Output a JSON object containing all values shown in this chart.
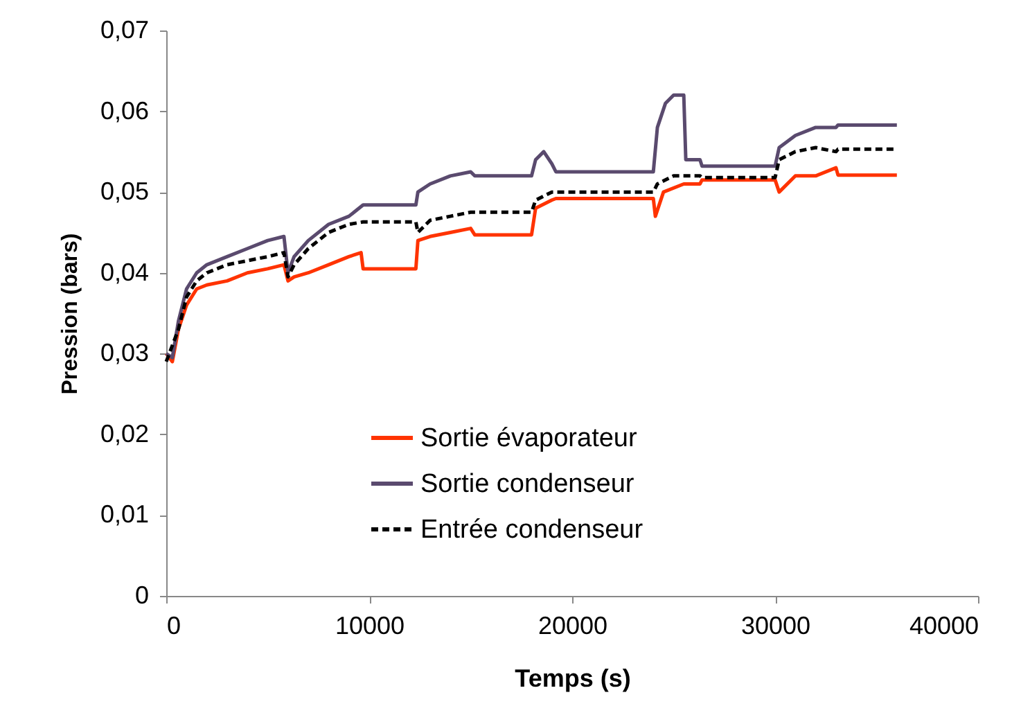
{
  "chart_data": {
    "type": "line",
    "xlabel": "Temps (s)",
    "ylabel": "Pression (bars)",
    "xlim": [
      0,
      40000
    ],
    "xticks": [
      0,
      10000,
      20000,
      30000,
      40000
    ],
    "ylim": [
      0,
      0.07
    ],
    "yticks": [
      0,
      {
        "value": 0.01,
        "label": "0,01"
      },
      {
        "value": 0.02,
        "label": "0,02"
      },
      {
        "value": 0.03,
        "label": "0,03"
      },
      {
        "value": 0.04,
        "label": "0,04"
      },
      {
        "value": 0.05,
        "label": "0,05"
      },
      {
        "value": 0.06,
        "label": "0,06"
      },
      {
        "value": 0.07,
        "label": "0,07"
      }
    ],
    "grid": false,
    "legend": "bottom",
    "marker": "none",
    "series": [
      {
        "name": "Sortie évaporateur",
        "color": "#ff3300",
        "line_style": "solid",
        "x": [
          0,
          300,
          600,
          1000,
          1500,
          2000,
          3000,
          4000,
          5000,
          5800,
          6000,
          6300,
          7000,
          8000,
          9000,
          9600,
          9700,
          12300,
          12400,
          13000,
          14000,
          15000,
          15200,
          18000,
          18200,
          19000,
          19200,
          24000,
          24100,
          24500,
          25500,
          26300,
          26400,
          30000,
          30200,
          31000,
          32000,
          33000,
          33100,
          36000
        ],
        "values": [
          0.03,
          0.029,
          0.033,
          0.036,
          0.038,
          0.0385,
          0.039,
          0.04,
          0.0405,
          0.041,
          0.039,
          0.0395,
          0.04,
          0.041,
          0.042,
          0.0425,
          0.0405,
          0.0405,
          0.044,
          0.0445,
          0.045,
          0.0455,
          0.0447,
          0.0447,
          0.048,
          0.049,
          0.0492,
          0.0492,
          0.047,
          0.05,
          0.051,
          0.051,
          0.0515,
          0.0515,
          0.05,
          0.052,
          0.052,
          0.053,
          0.0521,
          0.0521
        ]
      },
      {
        "name": "Sortie condenseur",
        "color": "#5a4a6e",
        "line_style": "solid",
        "x": [
          0,
          300,
          600,
          1000,
          1500,
          2000,
          3000,
          4000,
          5000,
          5800,
          6000,
          6300,
          7000,
          8000,
          9000,
          9700,
          12300,
          12400,
          13000,
          14000,
          15000,
          15200,
          18000,
          18200,
          18600,
          19000,
          19200,
          24000,
          24200,
          24600,
          25000,
          25500,
          25600,
          26300,
          26400,
          30000,
          30200,
          31000,
          32000,
          33000,
          33100,
          36000
        ],
        "values": [
          0.03,
          0.0295,
          0.034,
          0.038,
          0.04,
          0.041,
          0.042,
          0.043,
          0.044,
          0.0445,
          0.04,
          0.042,
          0.044,
          0.046,
          0.047,
          0.0484,
          0.0484,
          0.05,
          0.051,
          0.052,
          0.0525,
          0.052,
          0.052,
          0.054,
          0.055,
          0.0535,
          0.0525,
          0.0525,
          0.058,
          0.061,
          0.062,
          0.062,
          0.054,
          0.054,
          0.0532,
          0.0532,
          0.0555,
          0.057,
          0.058,
          0.058,
          0.0583,
          0.0583
        ]
      },
      {
        "name": "Entrée condenseur",
        "color": "#000000",
        "line_style": "dashed",
        "x": [
          0,
          600,
          1000,
          1500,
          2000,
          3000,
          4000,
          5000,
          5800,
          6000,
          6300,
          7000,
          8000,
          9000,
          9700,
          12300,
          12400,
          13000,
          14000,
          15000,
          15200,
          18000,
          18200,
          19000,
          19200,
          24000,
          24200,
          25000,
          26300,
          26400,
          30000,
          30200,
          31000,
          32000,
          33000,
          33100,
          36000
        ],
        "values": [
          0.029,
          0.033,
          0.037,
          0.039,
          0.04,
          0.041,
          0.0415,
          0.042,
          0.0425,
          0.0395,
          0.041,
          0.043,
          0.045,
          0.046,
          0.0463,
          0.0463,
          0.045,
          0.0465,
          0.047,
          0.0475,
          0.0475,
          0.0475,
          0.049,
          0.05,
          0.05,
          0.05,
          0.051,
          0.052,
          0.052,
          0.0518,
          0.0518,
          0.054,
          0.055,
          0.0555,
          0.055,
          0.0553,
          0.0553
        ]
      }
    ]
  }
}
